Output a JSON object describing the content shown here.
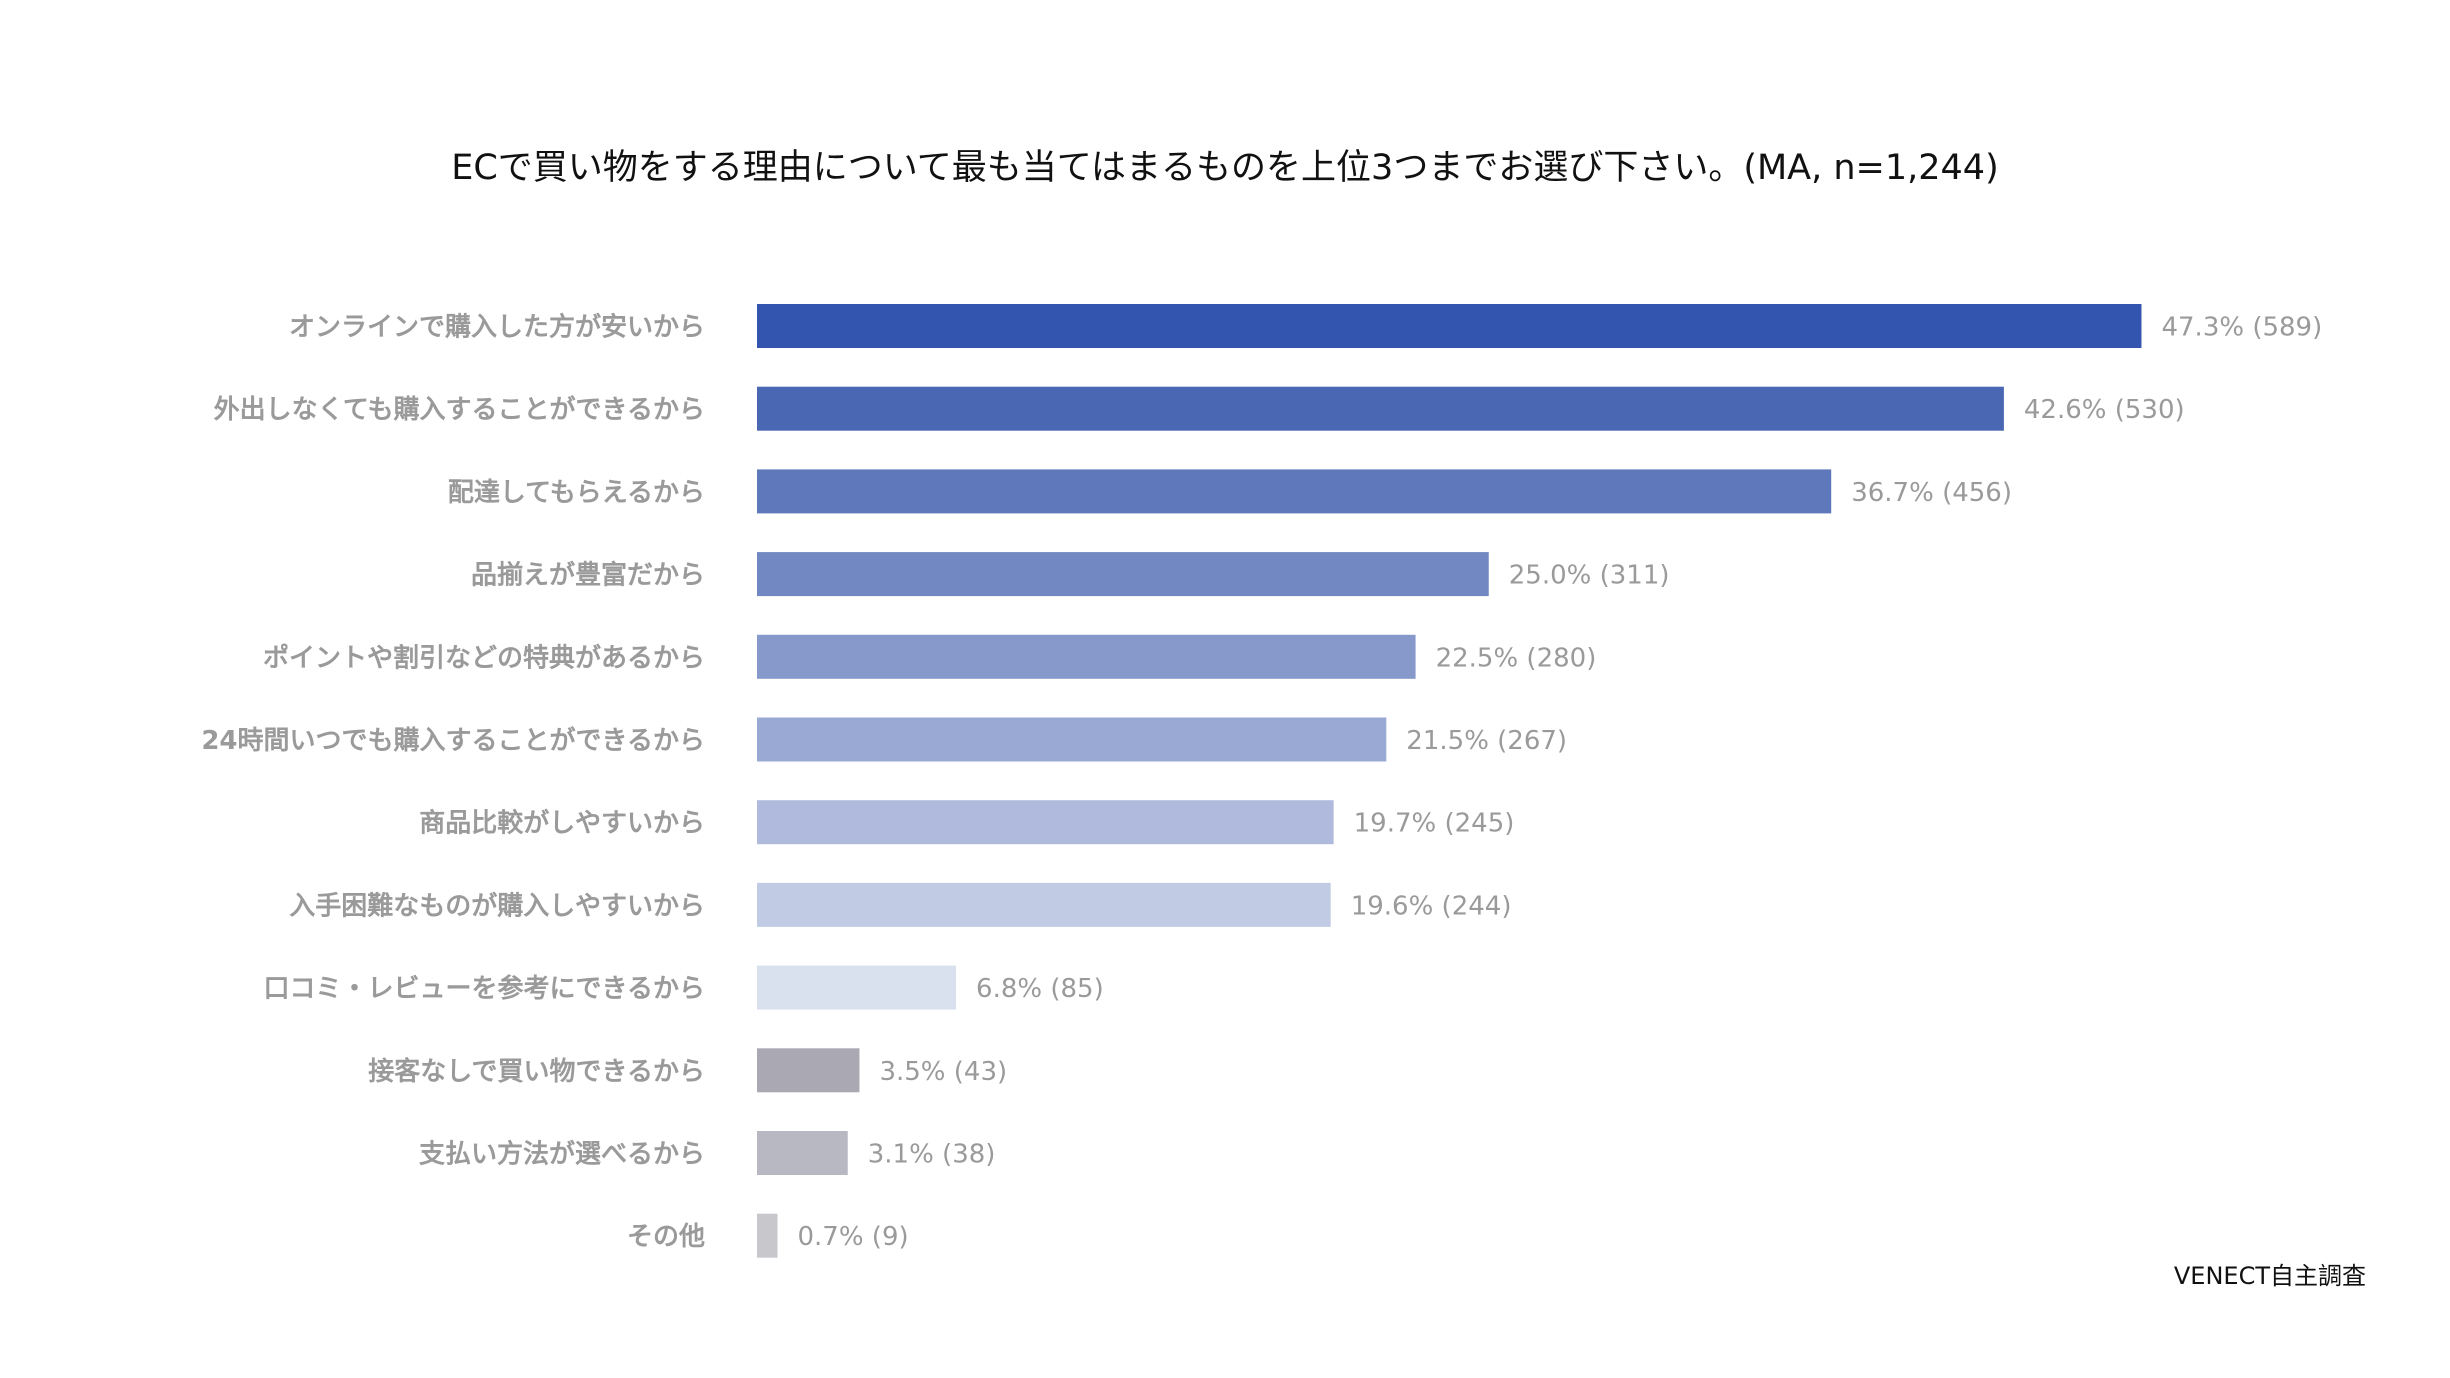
{
  "chart_data": {
    "type": "bar",
    "orientation": "horizontal",
    "title": "ECで買い物をする理由について最も当てはまるものを上位3つまでお選び下さい。(MA, n=1,244)",
    "categories": [
      "オンラインで購入した方が安いから",
      "外出しなくても購入することができるから",
      "配達してもらえるから",
      "品揃えが豊富だから",
      "ポイントや割引などの特典があるから",
      "24時間いつでも購入することができるから",
      "商品比較がしやすいから",
      "入手困難なものが購入しやすいから",
      "口コミ・レビューを参考にできるから",
      "接客なしで買い物できるから",
      "支払い方法が選べるから",
      "その他"
    ],
    "values": [
      47.3,
      42.6,
      36.7,
      25.0,
      22.5,
      21.5,
      19.7,
      19.6,
      6.8,
      3.5,
      3.1,
      0.7
    ],
    "value_labels": [
      "47.3% (589)",
      "42.6% (530)",
      "36.7% (456)",
      "25.0% (311)",
      "22.5% (280)",
      "21.5% (267)",
      "19.7% (245)",
      "19.6% (244)",
      "6.8% (85)",
      "3.5% (43)",
      "3.1% (38)",
      "0.7% (9)"
    ],
    "colors": [
      "#3355b0",
      "#4a67b3",
      "#5e78bb",
      "#7188c2",
      "#8799cb",
      "#99a9d3",
      "#afbadd",
      "#c1cce4",
      "#d9e0ee",
      "#aaa9b3",
      "#b8b8c3",
      "#c8c8cc"
    ],
    "source": "VENECT自主調査"
  }
}
